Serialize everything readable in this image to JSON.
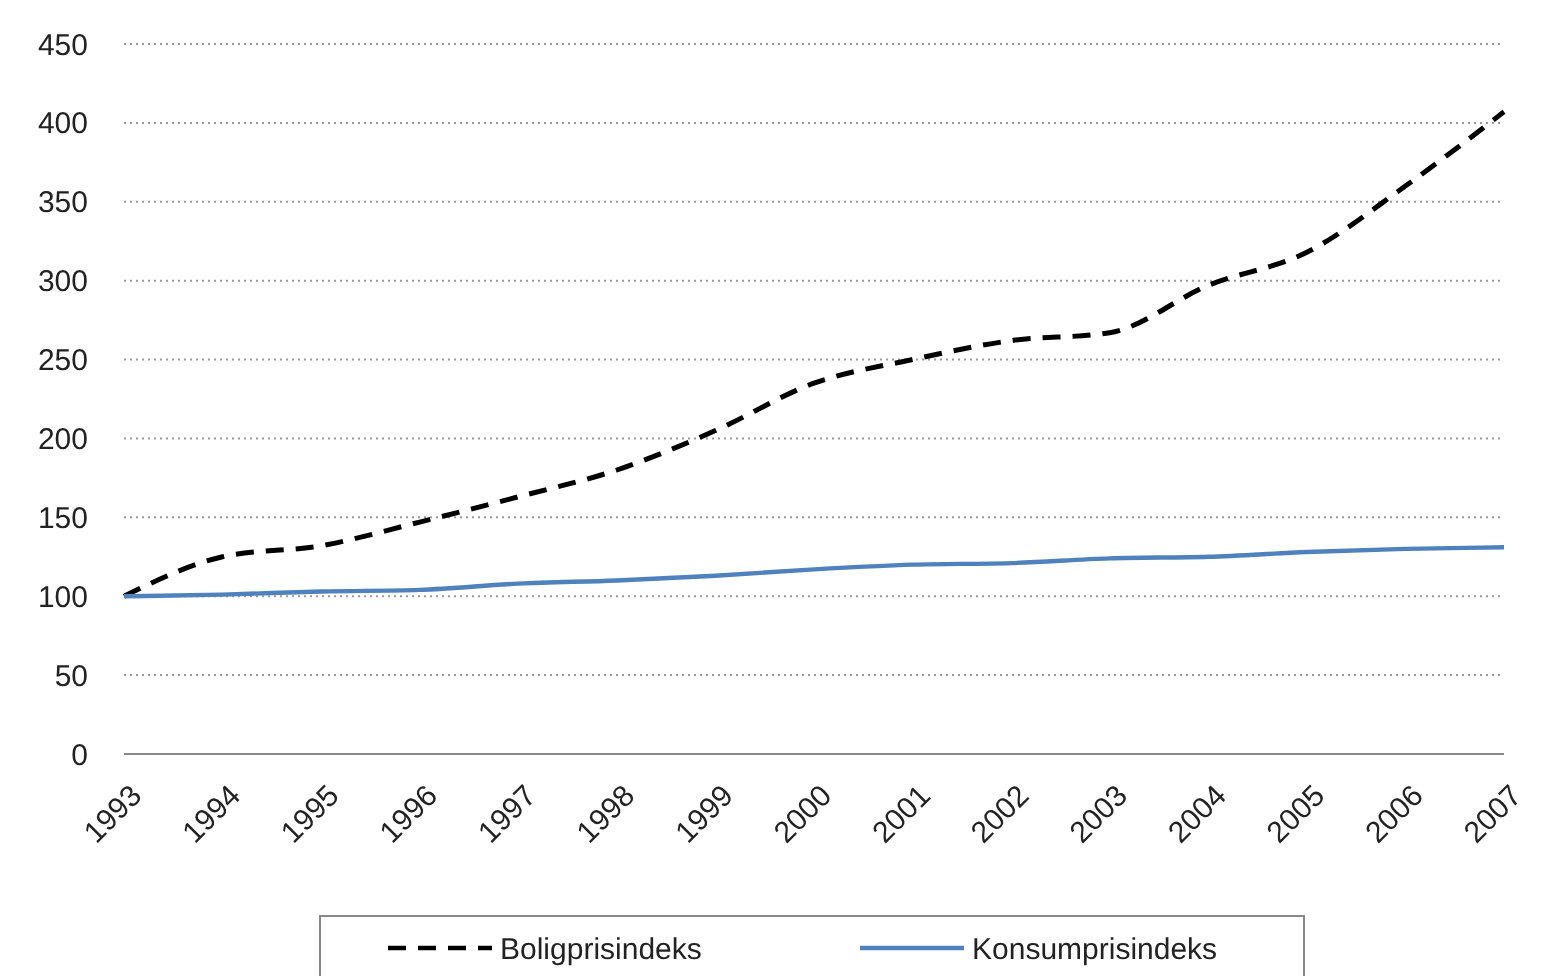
{
  "chart_data": {
    "type": "line",
    "categories": [
      "1993",
      "1994",
      "1995",
      "1996",
      "1997",
      "1998",
      "1999",
      "2000",
      "2001",
      "2002",
      "2003",
      "2004",
      "2005",
      "2006",
      "2007"
    ],
    "series": [
      {
        "name": "Boligprisindeks",
        "color": "#000000",
        "line_style": "dashed",
        "values": [
          100,
          125,
          132,
          147,
          163,
          180,
          205,
          235,
          250,
          262,
          267,
          297,
          318,
          360,
          407
        ]
      },
      {
        "name": "Konsumprisindeks",
        "color": "#4f81bd",
        "line_style": "solid",
        "values": [
          100,
          101,
          103,
          104,
          108,
          110,
          113,
          117,
          120,
          121,
          124,
          125,
          128,
          130,
          131
        ]
      }
    ],
    "ylim": [
      0,
      450
    ],
    "yticks": [
      0,
      50,
      100,
      150,
      200,
      250,
      300,
      350,
      400,
      450
    ],
    "grid": "y",
    "legend": "bottom",
    "marker": "none"
  }
}
